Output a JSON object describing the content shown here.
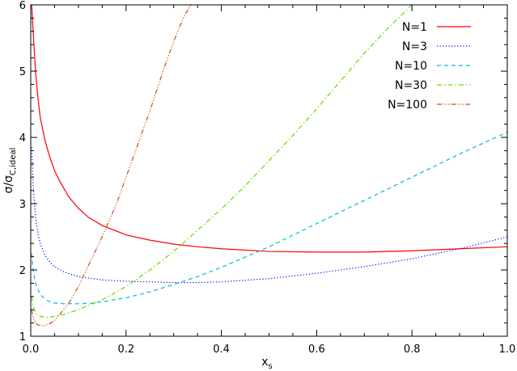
{
  "chart_data": {
    "type": "line",
    "xlabel": "x",
    "xlabel_sub": "s",
    "ylabel": "σ/σ",
    "ylabel_sub": "C,ideal",
    "xlim": [
      0.0,
      1.0
    ],
    "ylim": [
      1.0,
      6.0
    ],
    "x_ticks": [
      "0.0",
      "0.2",
      "0.4",
      "0.6",
      "0.8",
      "1.0"
    ],
    "y_ticks": [
      "1",
      "2",
      "3",
      "4",
      "5",
      "6"
    ],
    "grid": false,
    "legend_position": "top-right",
    "series": [
      {
        "name": "N=1",
        "color": "#ff0000",
        "dash": "solid",
        "x": [
          0.002,
          0.005,
          0.01,
          0.015,
          0.02,
          0.03,
          0.04,
          0.05,
          0.06,
          0.08,
          0.1,
          0.12,
          0.15,
          0.2,
          0.25,
          0.3,
          0.35,
          0.4,
          0.5,
          0.6,
          0.7,
          0.8,
          0.9,
          1.0
        ],
        "y": [
          6.0,
          5.6,
          5.0,
          4.6,
          4.3,
          3.95,
          3.7,
          3.5,
          3.35,
          3.1,
          2.93,
          2.8,
          2.67,
          2.53,
          2.45,
          2.39,
          2.35,
          2.32,
          2.28,
          2.27,
          2.27,
          2.29,
          2.32,
          2.35
        ]
      },
      {
        "name": "N=3",
        "color": "#0000ff",
        "dash": "dotted",
        "x": [
          0.002,
          0.005,
          0.01,
          0.015,
          0.02,
          0.03,
          0.04,
          0.05,
          0.07,
          0.1,
          0.15,
          0.2,
          0.25,
          0.3,
          0.35,
          0.4,
          0.5,
          0.6,
          0.7,
          0.8,
          0.9,
          1.0
        ],
        "y": [
          3.85,
          3.3,
          2.8,
          2.55,
          2.4,
          2.22,
          2.12,
          2.05,
          1.97,
          1.9,
          1.85,
          1.83,
          1.82,
          1.81,
          1.81,
          1.82,
          1.87,
          1.95,
          2.05,
          2.17,
          2.32,
          2.5
        ]
      },
      {
        "name": "N=10",
        "color": "#00bcd4",
        "dash": "dashed",
        "x": [
          0.002,
          0.005,
          0.01,
          0.02,
          0.03,
          0.04,
          0.05,
          0.07,
          0.1,
          0.13,
          0.15,
          0.2,
          0.25,
          0.3,
          0.35,
          0.4,
          0.5,
          0.6,
          0.7,
          0.8,
          0.9,
          1.0
        ],
        "y": [
          2.25,
          2.0,
          1.8,
          1.63,
          1.56,
          1.52,
          1.5,
          1.49,
          1.49,
          1.5,
          1.52,
          1.58,
          1.67,
          1.78,
          1.9,
          2.04,
          2.35,
          2.7,
          3.05,
          3.4,
          3.75,
          4.08
        ]
      },
      {
        "name": "N=30",
        "color": "#66dd00",
        "dash": "dashdot",
        "x": [
          0.002,
          0.005,
          0.01,
          0.02,
          0.03,
          0.04,
          0.05,
          0.07,
          0.1,
          0.15,
          0.2,
          0.25,
          0.3,
          0.35,
          0.4,
          0.45,
          0.5,
          0.55,
          0.6,
          0.65,
          0.7,
          0.75,
          0.8
        ],
        "y": [
          1.6,
          1.45,
          1.35,
          1.3,
          1.29,
          1.29,
          1.3,
          1.33,
          1.4,
          1.55,
          1.75,
          2.0,
          2.28,
          2.6,
          2.92,
          3.27,
          3.65,
          4.03,
          4.43,
          4.85,
          5.27,
          5.65,
          6.0
        ]
      },
      {
        "name": "N=100",
        "color": "#c8501e",
        "dash": "dashdotdotdot",
        "x": [
          0.002,
          0.005,
          0.01,
          0.015,
          0.02,
          0.03,
          0.04,
          0.05,
          0.06,
          0.08,
          0.1,
          0.12,
          0.15,
          0.18,
          0.2,
          0.22,
          0.25,
          0.28,
          0.3,
          0.32,
          0.336
        ],
        "y": [
          1.4,
          1.28,
          1.2,
          1.17,
          1.16,
          1.16,
          1.19,
          1.24,
          1.32,
          1.5,
          1.75,
          2.05,
          2.5,
          3.0,
          3.4,
          3.8,
          4.4,
          5.05,
          5.45,
          5.8,
          6.0
        ]
      }
    ]
  }
}
